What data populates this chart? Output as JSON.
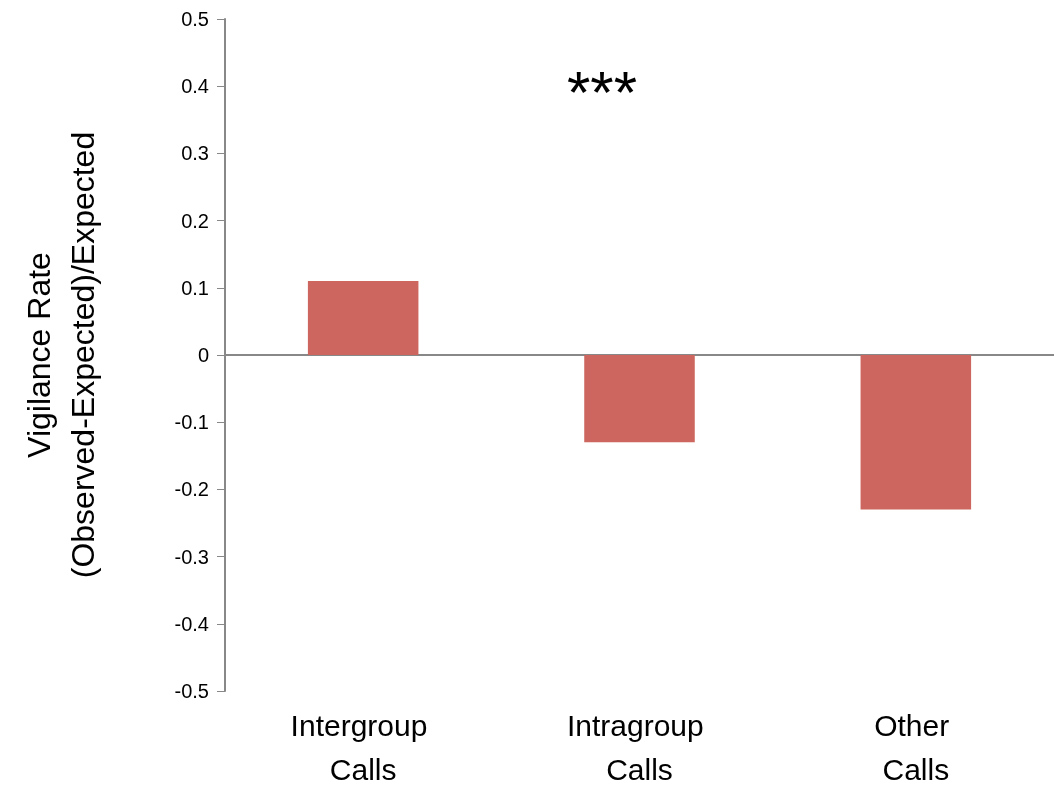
{
  "chart_data": {
    "type": "bar",
    "ylabel": "Vigilance Rate\n(Observed-Expected)/Expected",
    "categories": [
      "Intergroup Calls",
      "Intragroup Calls",
      "Other Calls"
    ],
    "values": [
      0.11,
      -0.13,
      -0.23
    ],
    "color": "#cd665e",
    "ylim": [
      -0.5,
      0.5
    ],
    "yticks": [
      -0.5,
      -0.4,
      -0.3,
      -0.2,
      -0.1,
      0,
      0.1,
      0.2,
      0.3,
      0.4,
      0.5
    ],
    "annotations": [
      "***"
    ]
  }
}
